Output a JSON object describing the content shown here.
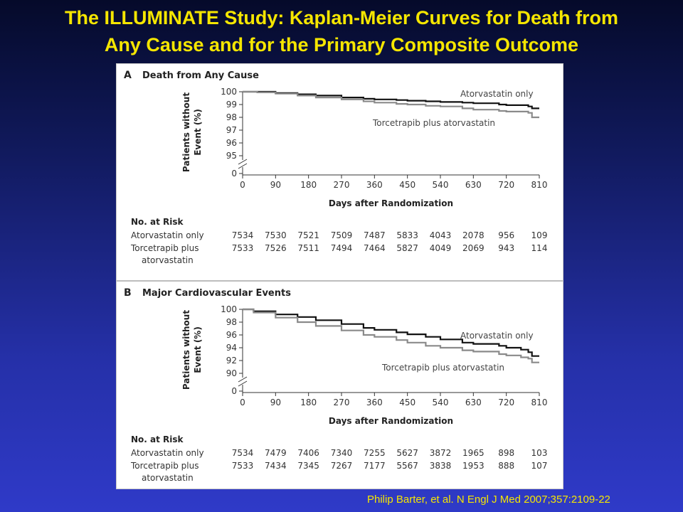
{
  "slide": {
    "title_line1": "The ILLUMINATE  Study: Kaplan-Meier Curves for Death from",
    "title_line2": "Any Cause and for the Primary Composite Outcome",
    "citation": "Philip Barter, et al. N Engl J Med 2007;357:2109-22"
  },
  "colors": {
    "title": "#f5e600",
    "atorvastatin_line": "#111111",
    "torcetrapib_line": "#8a8a8a"
  },
  "chart_data": [
    {
      "type": "line",
      "panel": "A",
      "title": "Death from Any Cause",
      "xlabel": "Days after Randomization",
      "ylabel": "Patients without Event (%)",
      "xlim": [
        0,
        810
      ],
      "x_ticks": [
        "0",
        "90",
        "180",
        "270",
        "360",
        "450",
        "540",
        "630",
        "720",
        "810"
      ],
      "y_ticks": [
        "100",
        "99",
        "98",
        "97",
        "96",
        "95"
      ],
      "y_zero": "0",
      "ylim": [
        95,
        100
      ],
      "axis_break": true,
      "series": [
        {
          "name": "Atorvastatin only",
          "x": [
            0,
            40,
            90,
            150,
            200,
            270,
            330,
            360,
            420,
            450,
            500,
            540,
            600,
            630,
            700,
            720,
            780,
            790,
            810
          ],
          "values": [
            100,
            100,
            99.9,
            99.8,
            99.7,
            99.55,
            99.45,
            99.4,
            99.35,
            99.3,
            99.25,
            99.2,
            99.15,
            99.1,
            99.0,
            98.95,
            98.85,
            98.7,
            98.7
          ]
        },
        {
          "name": "Torcetrapib plus atorvastatin",
          "x": [
            0,
            40,
            90,
            150,
            200,
            270,
            330,
            360,
            420,
            450,
            500,
            540,
            600,
            630,
            700,
            720,
            780,
            790,
            810
          ],
          "values": [
            100,
            99.95,
            99.85,
            99.7,
            99.55,
            99.4,
            99.25,
            99.15,
            99.05,
            99.0,
            98.9,
            98.85,
            98.7,
            98.6,
            98.5,
            98.45,
            98.35,
            98.0,
            98.0
          ]
        }
      ],
      "risk_table": {
        "header": "No. at Risk",
        "rows": [
          {
            "label": [
              "Atorvastatin only"
            ],
            "values": [
              "7534",
              "7530",
              "7521",
              "7509",
              "7487",
              "5833",
              "4043",
              "2078",
              "956",
              "109"
            ]
          },
          {
            "label": [
              "Torcetrapib plus",
              "atorvastatin"
            ],
            "values": [
              "7533",
              "7526",
              "7511",
              "7494",
              "7464",
              "5827",
              "4049",
              "2069",
              "943",
              "114"
            ]
          }
        ]
      }
    },
    {
      "type": "line",
      "panel": "B",
      "title": "Major Cardiovascular Events",
      "xlabel": "Days after Randomization",
      "ylabel": "Patients without Event (%)",
      "xlim": [
        0,
        810
      ],
      "x_ticks": [
        "0",
        "90",
        "180",
        "270",
        "360",
        "450",
        "540",
        "630",
        "720",
        "810"
      ],
      "y_ticks": [
        "100",
        "98",
        "96",
        "94",
        "92",
        "90"
      ],
      "y_zero": "0",
      "ylim": [
        90,
        100
      ],
      "axis_break": true,
      "series": [
        {
          "name": "Atorvastatin only",
          "x": [
            0,
            30,
            90,
            150,
            200,
            270,
            330,
            360,
            420,
            450,
            500,
            540,
            600,
            630,
            700,
            720,
            760,
            780,
            790,
            810
          ],
          "values": [
            100,
            99.7,
            99.2,
            98.8,
            98.3,
            97.7,
            97.1,
            96.8,
            96.4,
            96.1,
            95.7,
            95.3,
            94.8,
            94.6,
            94.3,
            94.0,
            93.7,
            93.3,
            92.7,
            92.7
          ]
        },
        {
          "name": "Torcetrapib plus atorvastatin",
          "x": [
            0,
            30,
            90,
            150,
            200,
            270,
            330,
            360,
            420,
            450,
            500,
            540,
            600,
            630,
            700,
            720,
            760,
            780,
            790,
            810
          ],
          "values": [
            100,
            99.5,
            98.7,
            98.0,
            97.4,
            96.7,
            96.0,
            95.7,
            95.2,
            94.8,
            94.3,
            94.0,
            93.6,
            93.4,
            93.0,
            92.8,
            92.5,
            92.3,
            91.7,
            91.7
          ]
        }
      ],
      "risk_table": {
        "header": "No. at Risk",
        "rows": [
          {
            "label": [
              "Atorvastatin only"
            ],
            "values": [
              "7534",
              "7479",
              "7406",
              "7340",
              "7255",
              "5627",
              "3872",
              "1965",
              "898",
              "103"
            ]
          },
          {
            "label": [
              "Torcetrapib plus",
              "atorvastatin"
            ],
            "values": [
              "7533",
              "7434",
              "7345",
              "7267",
              "7177",
              "5567",
              "3838",
              "1953",
              "888",
              "107"
            ]
          }
        ]
      }
    }
  ]
}
